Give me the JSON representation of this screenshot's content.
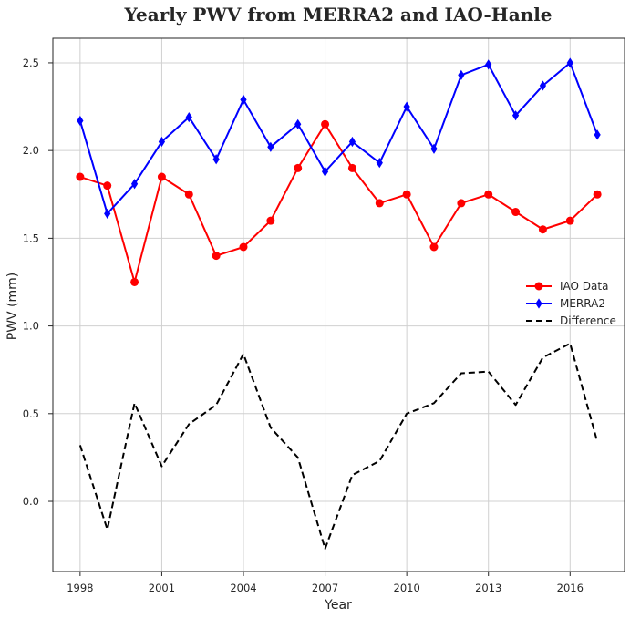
{
  "chart_data": {
    "type": "line",
    "title": "Yearly PWV from MERRA2 and IAO-Hanle",
    "xlabel": "Year",
    "ylabel": "PWV (mm)",
    "x": [
      1998,
      1999,
      2000,
      2001,
      2002,
      2003,
      2004,
      2005,
      2006,
      2007,
      2008,
      2009,
      2010,
      2011,
      2012,
      2013,
      2014,
      2015,
      2016,
      2017
    ],
    "xlim": [
      1997.0,
      2018.0
    ],
    "ylim": [
      -0.4,
      2.64
    ],
    "xticks": [
      1998,
      2001,
      2004,
      2007,
      2010,
      2013,
      2016
    ],
    "xtick_labels": [
      "1998",
      "2001",
      "2004",
      "2007",
      "2010",
      "2013",
      "2016"
    ],
    "yticks": [
      0.0,
      0.5,
      1.0,
      1.5,
      2.0,
      2.5
    ],
    "ytick_labels": [
      "0.0",
      "0.5",
      "1.0",
      "1.5",
      "2.0",
      "2.5"
    ],
    "grid": true,
    "legend_position": "right",
    "series": [
      {
        "name": "IAO Data",
        "color": "#ff0000",
        "marker": "circle",
        "linestyle": "solid",
        "values": [
          1.85,
          1.8,
          1.25,
          1.85,
          1.75,
          1.4,
          1.45,
          1.6,
          1.9,
          2.15,
          1.9,
          1.7,
          1.75,
          1.45,
          1.7,
          1.75,
          1.65,
          1.55,
          1.6,
          1.75
        ]
      },
      {
        "name": "MERRA2",
        "color": "#0000ff",
        "marker": "diamond",
        "linestyle": "solid",
        "values": [
          2.17,
          1.64,
          1.81,
          2.05,
          2.19,
          1.95,
          2.29,
          2.02,
          2.15,
          1.88,
          2.05,
          1.93,
          2.25,
          2.01,
          2.43,
          2.49,
          2.2,
          2.37,
          2.5,
          2.09
        ]
      },
      {
        "name": "Difference",
        "color": "#000000",
        "marker": "none",
        "linestyle": "dashed",
        "values": [
          0.32,
          -0.16,
          0.56,
          0.2,
          0.44,
          0.55,
          0.84,
          0.42,
          0.25,
          -0.27,
          0.15,
          0.23,
          0.5,
          0.56,
          0.73,
          0.74,
          0.55,
          0.82,
          0.9,
          0.34
        ]
      }
    ]
  }
}
